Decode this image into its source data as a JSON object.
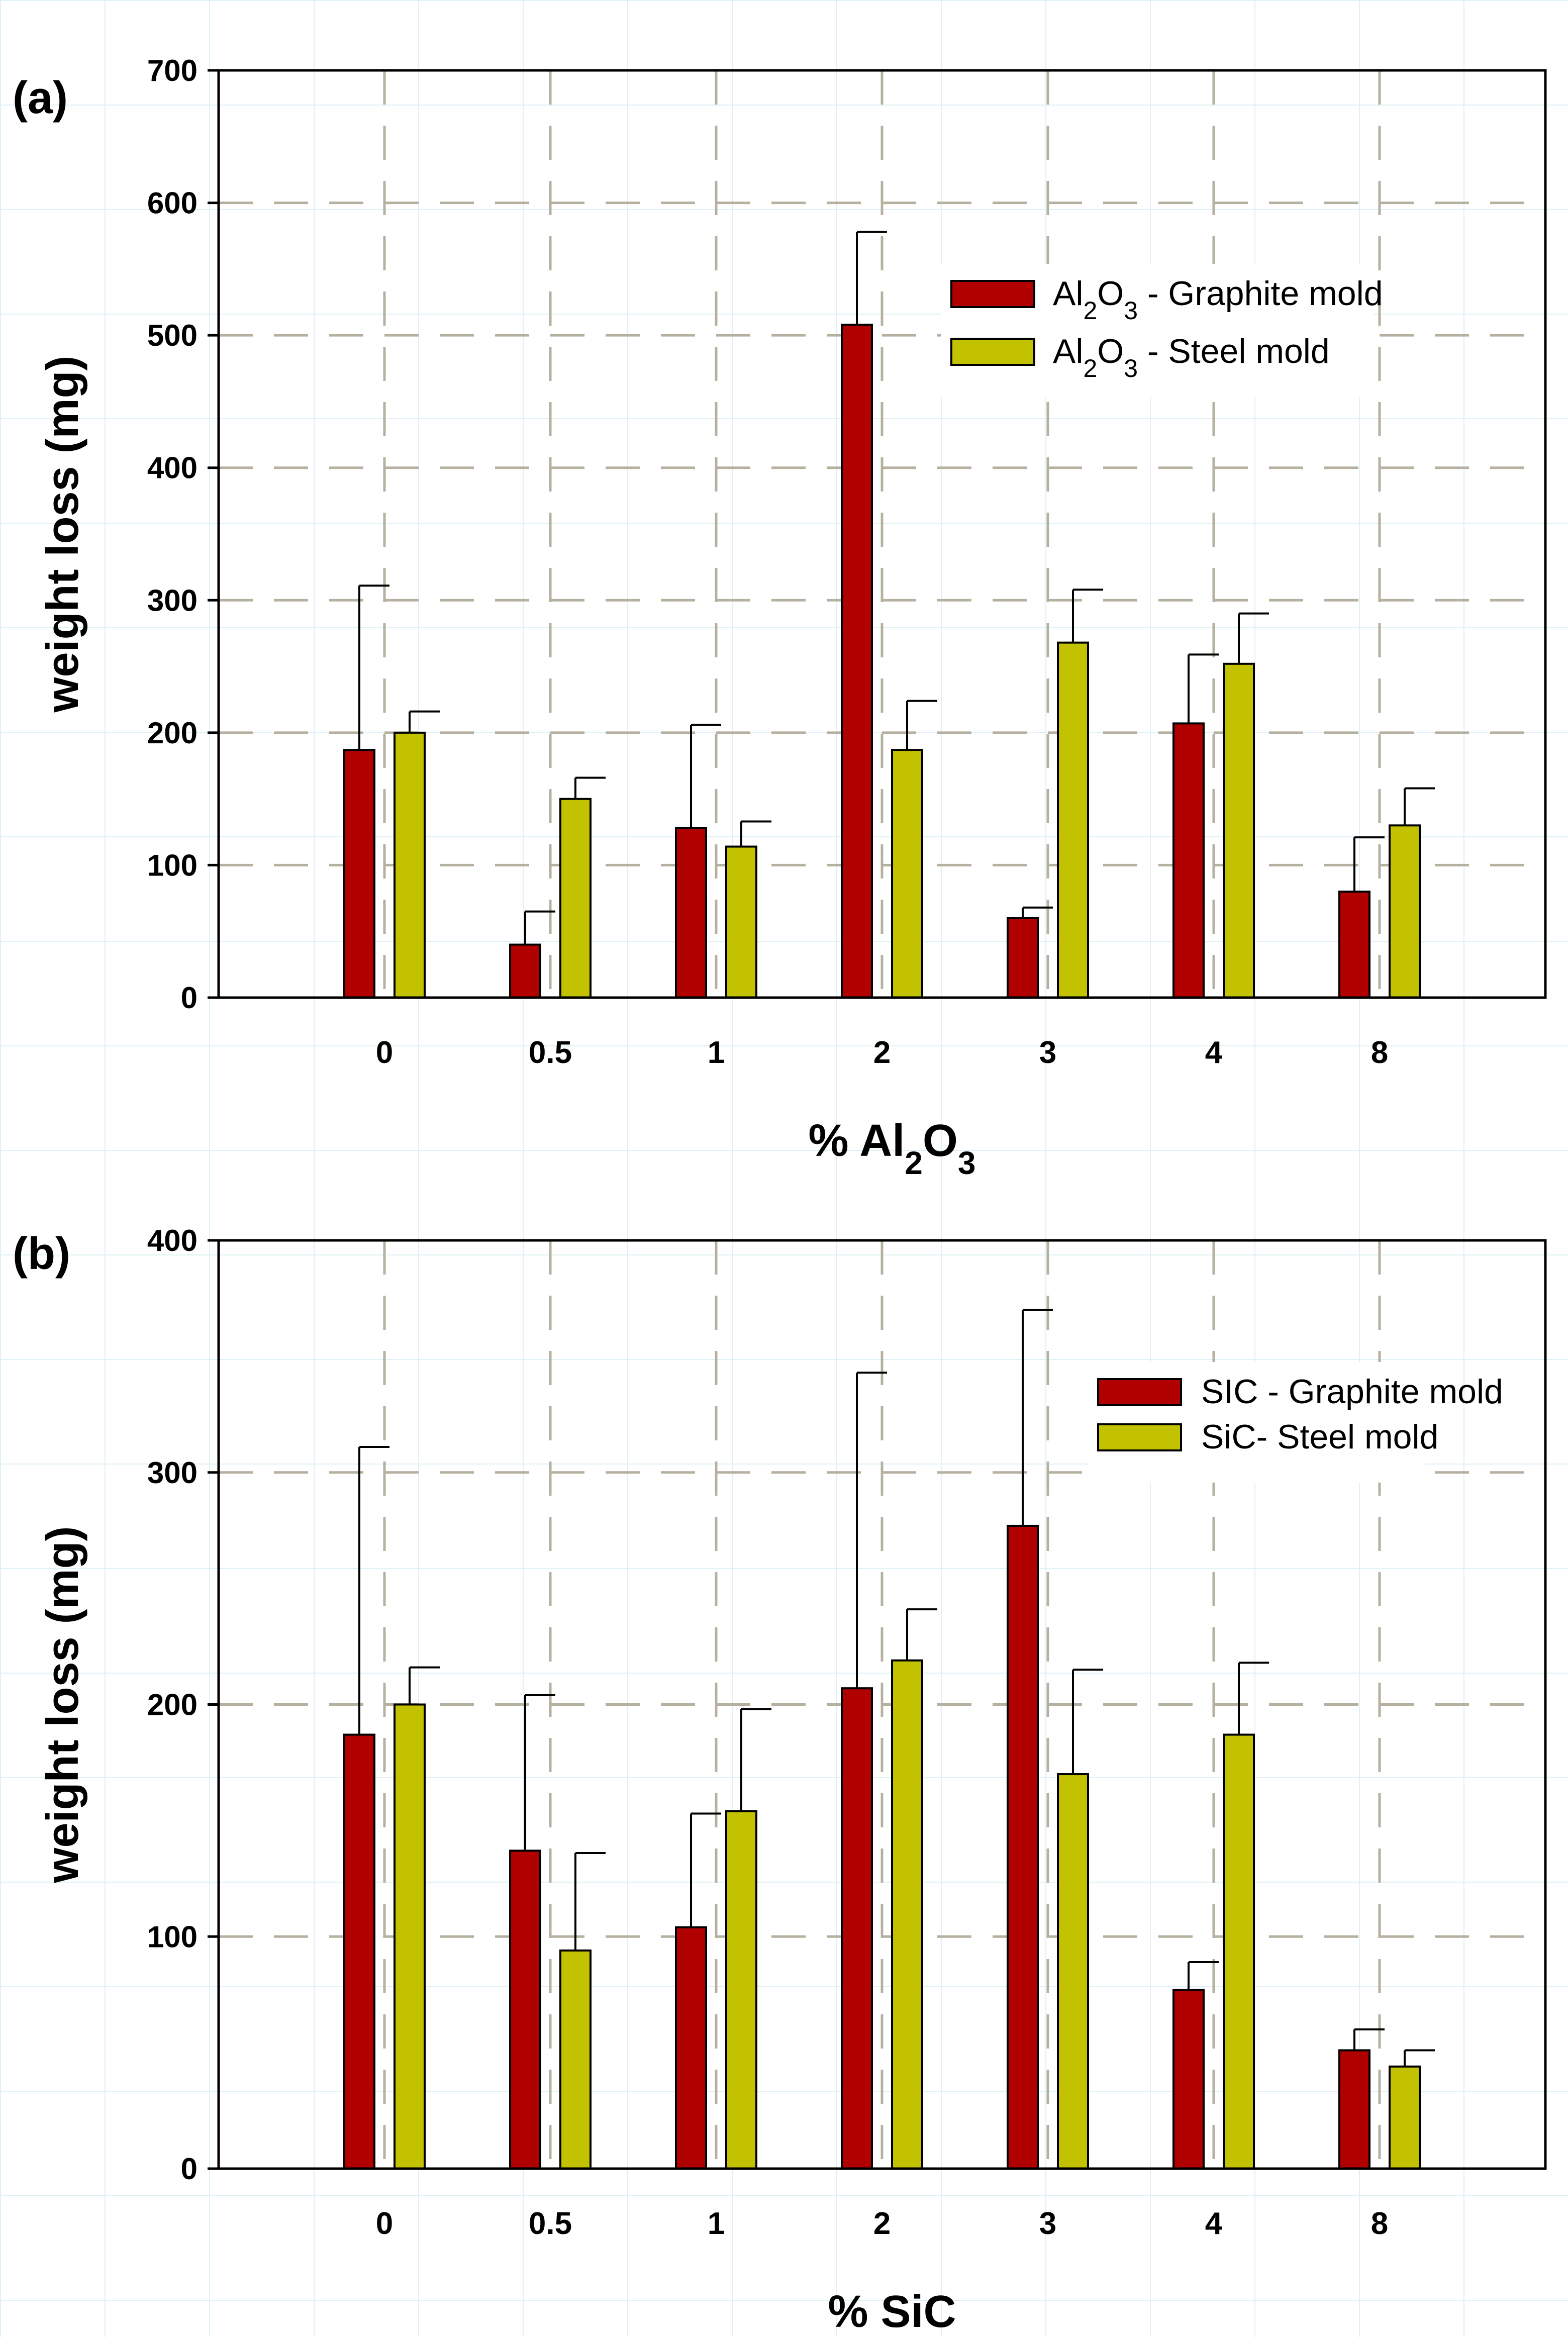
{
  "colors": {
    "graphite": "#b00000",
    "steel": "#c2c200",
    "grid": "#b5b09f",
    "axis": "#000000"
  },
  "chart_data": [
    {
      "type": "bar",
      "panel_label": "(a)",
      "categories": [
        "0",
        "0.5",
        "1",
        "2",
        "3",
        "4",
        "8"
      ],
      "series": [
        {
          "name": "Al2O3 - Graphite mold",
          "label_parts": [
            "Al",
            "2",
            "O",
            "3",
            " - Graphite mold"
          ],
          "values": [
            187,
            40,
            128,
            508,
            60,
            207,
            80
          ],
          "error_upper": [
            311,
            65,
            206,
            578,
            68,
            259,
            121
          ]
        },
        {
          "name": "Al2O3 - Steel mold",
          "label_parts": [
            "Al",
            "2",
            "O",
            "3",
            " - Steel mold"
          ],
          "values": [
            200,
            150,
            114,
            187,
            268,
            252,
            130
          ],
          "error_upper": [
            216,
            166,
            133,
            224,
            308,
            290,
            158
          ]
        }
      ],
      "ylim": [
        0,
        700
      ],
      "yticks": [
        "0",
        "100",
        "200",
        "300",
        "400",
        "500",
        "600",
        "700"
      ],
      "ylabel": "weight loss (mg)",
      "xlabel_parts": [
        "% Al",
        "2",
        "O",
        "3"
      ],
      "legend_position": "top-right",
      "grid": true
    },
    {
      "type": "bar",
      "panel_label": "(b)",
      "categories": [
        "0",
        "0.5",
        "1",
        "2",
        "3",
        "4",
        "8"
      ],
      "series": [
        {
          "name": "SIC - Graphite mold",
          "label_parts": [
            "SIC - Graphite mold"
          ],
          "values": [
            187,
            137,
            104,
            207,
            277,
            77,
            51
          ],
          "error_upper": [
            311,
            204,
            153,
            343,
            370,
            89,
            60
          ]
        },
        {
          "name": "SiC- Steel mold",
          "label_parts": [
            "SiC- Steel mold"
          ],
          "values": [
            200,
            94,
            154,
            219,
            170,
            187,
            44
          ],
          "error_upper": [
            216,
            136,
            198,
            241,
            215,
            218,
            51
          ]
        }
      ],
      "ylim": [
        0,
        400
      ],
      "yticks": [
        "0",
        "100",
        "200",
        "300",
        "400"
      ],
      "ylabel": "weight loss (mg)",
      "xlabel_parts": [
        "% SiC"
      ],
      "legend_position": "top-right",
      "grid": true
    }
  ]
}
